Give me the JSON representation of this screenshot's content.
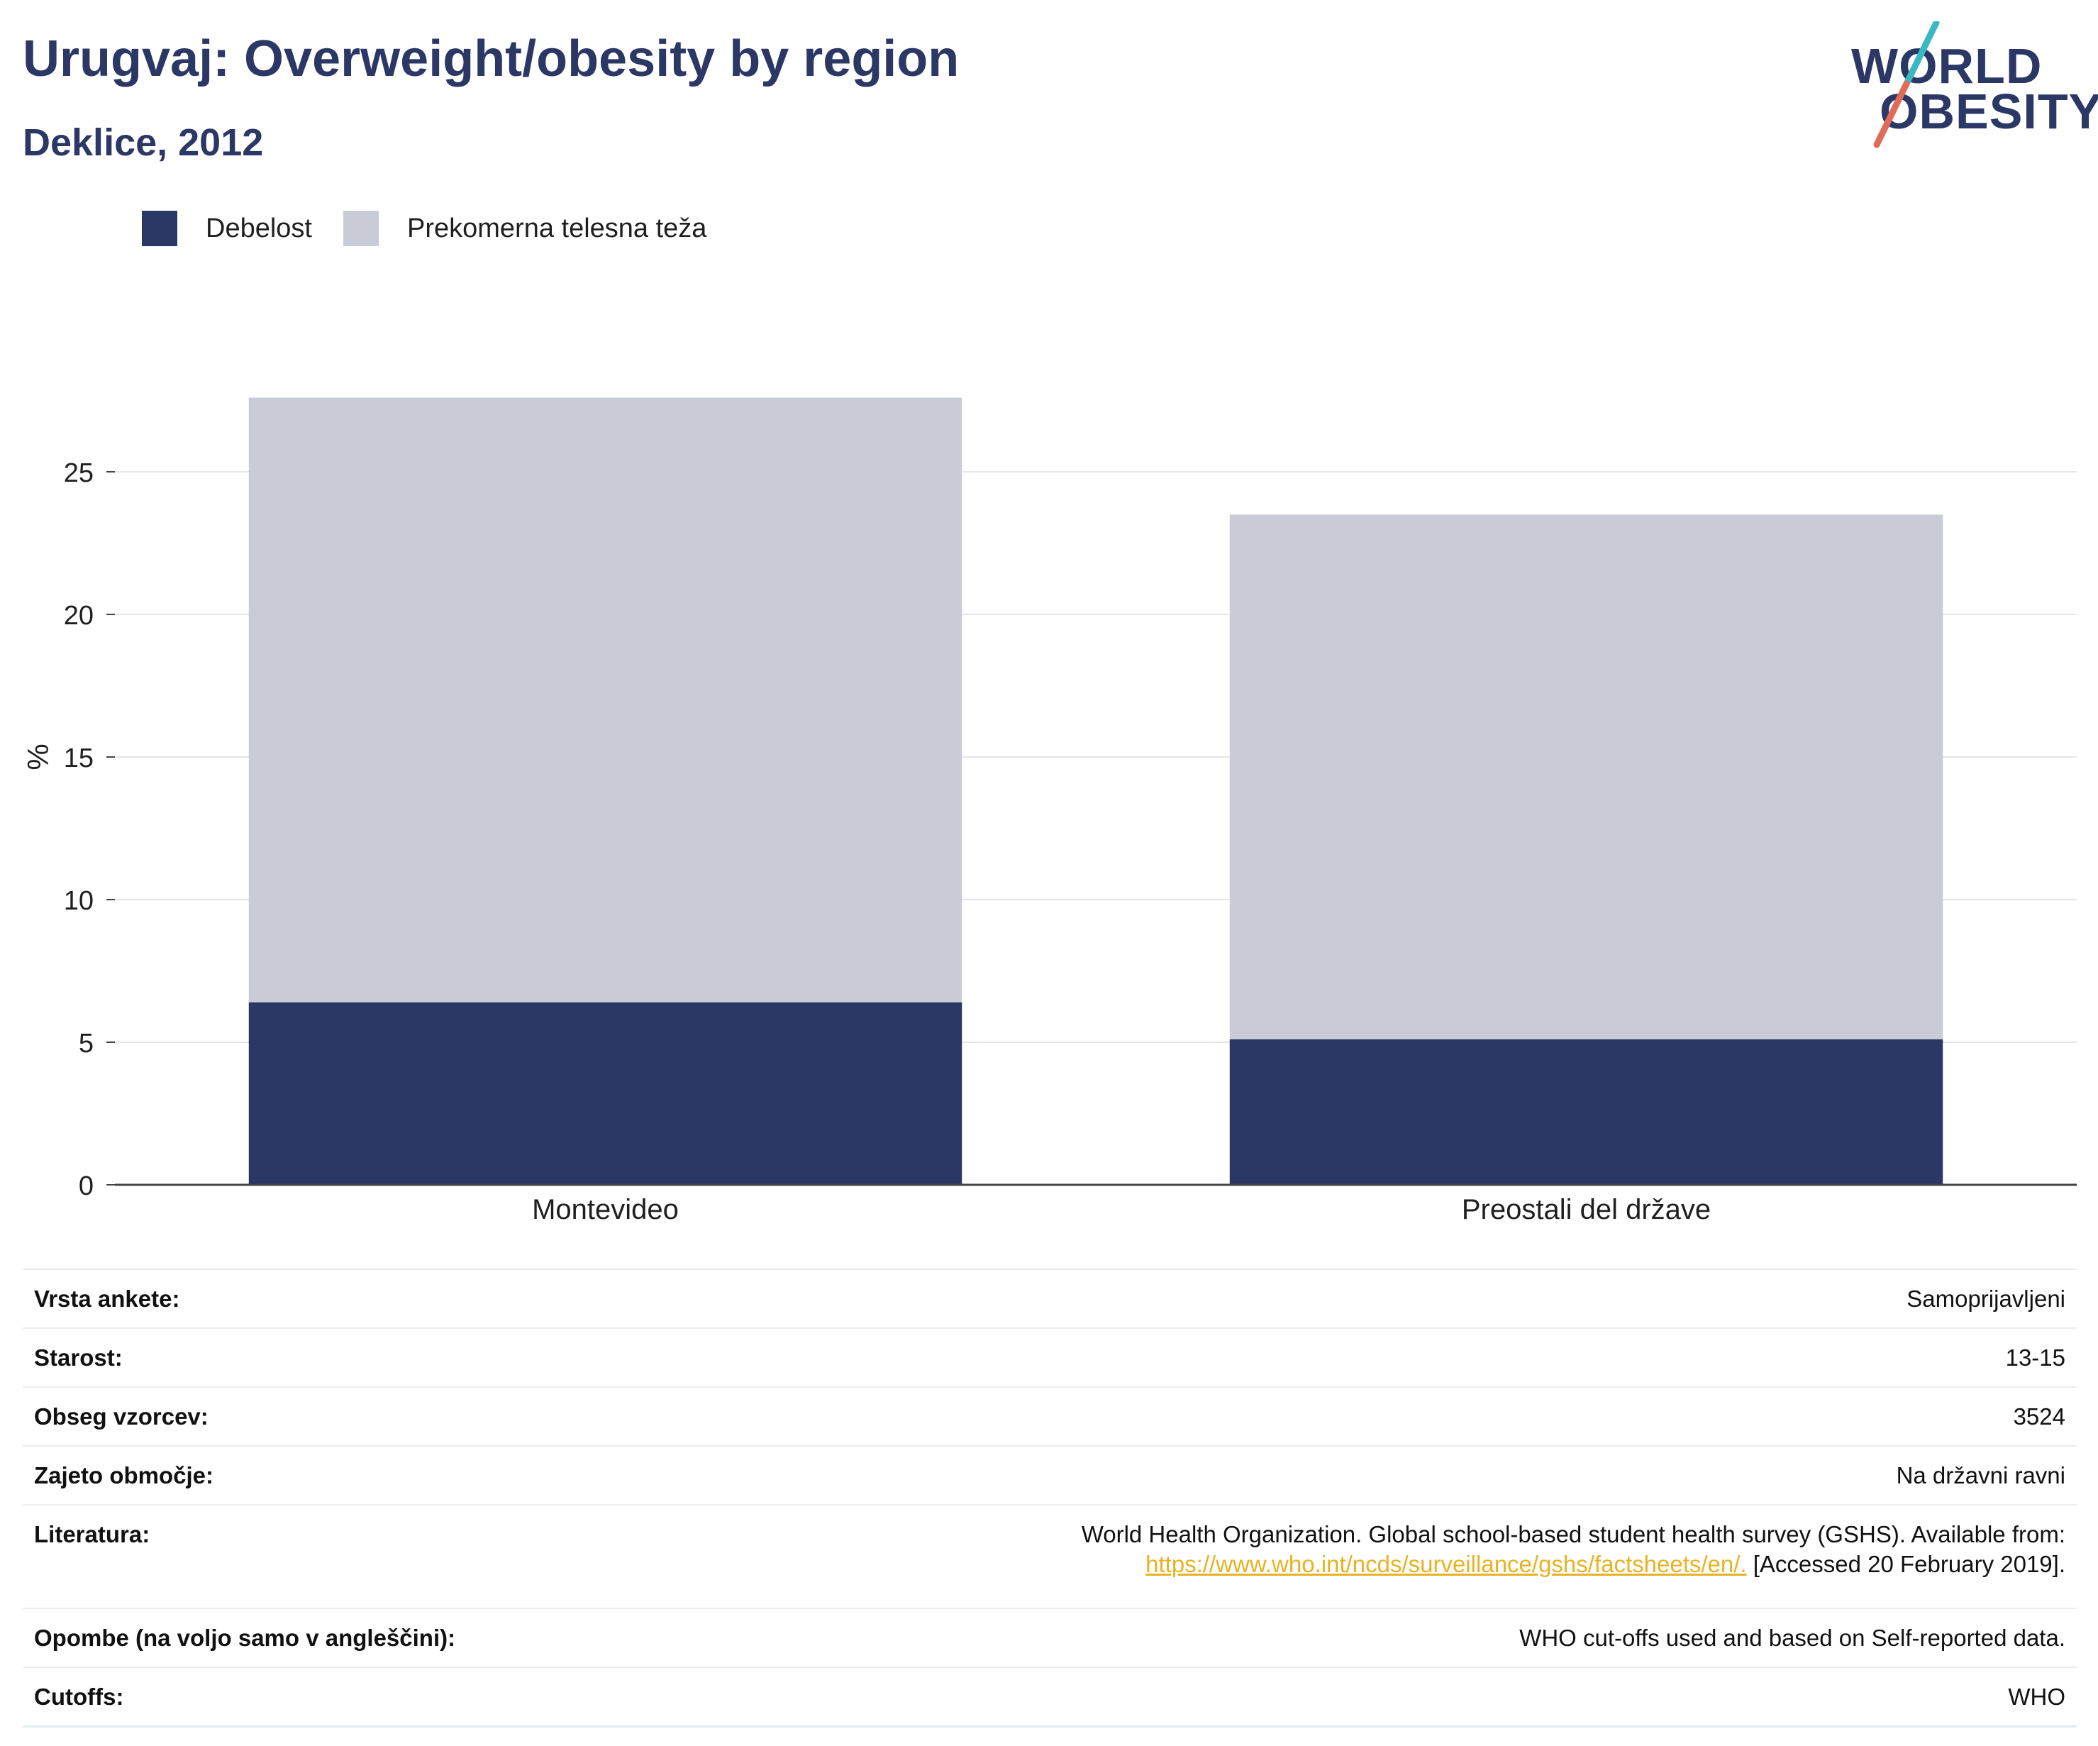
{
  "header": {
    "title": "Urugvaj: Overweight/obesity by region",
    "subtitle": "Deklice, 2012"
  },
  "logo": {
    "line1": "WORLD",
    "line2": "OBESITY",
    "colors": {
      "text": "#2b3764",
      "slash_top": "#3ab8c3",
      "slash_bottom": "#e06b57"
    }
  },
  "legend": [
    {
      "label": "Debelost",
      "color": "#2b3764"
    },
    {
      "label": "Prekomerna telesna teža",
      "color": "#c9cbd7"
    }
  ],
  "chart_data": {
    "type": "bar",
    "stacked": true,
    "categories": [
      "Montevideo",
      "Preostali del države"
    ],
    "series": [
      {
        "name": "Debelost",
        "color": "#2b3764",
        "values": [
          6.4,
          5.1
        ]
      },
      {
        "name": "Prekomerna telesna teža",
        "color": "#c9cbd7",
        "values": [
          21.2,
          18.4
        ]
      }
    ],
    "ylabel": "%",
    "xlabel": "",
    "ylim": [
      0,
      30
    ],
    "yticks": [
      0,
      5,
      10,
      15,
      20,
      25
    ],
    "grid": true,
    "legend_position": "top-left"
  },
  "info": {
    "rows": [
      {
        "key": "Vrsta ankete:",
        "value": "Samoprijavljeni"
      },
      {
        "key": "Starost:",
        "value": "13-15"
      },
      {
        "key": "Obseg vzorcev:",
        "value": "3524"
      },
      {
        "key": "Zajeto območje:",
        "value": "Na državni ravni"
      }
    ],
    "literature": {
      "key": "Literatura:",
      "text": "World Health Organization. Global school-based student health survey (GSHS). Available from:",
      "link": "https://www.who.int/ncds/surveillance/gshs/factsheets/en/.",
      "accessed": " [Accessed 20 February 2019]."
    },
    "rows_after": [
      {
        "key": "Opombe (na voljo samo v angleščini):",
        "value": "WHO cut-offs used and based on Self-reported data."
      },
      {
        "key": "Cutoffs:",
        "value": "WHO"
      }
    ]
  }
}
